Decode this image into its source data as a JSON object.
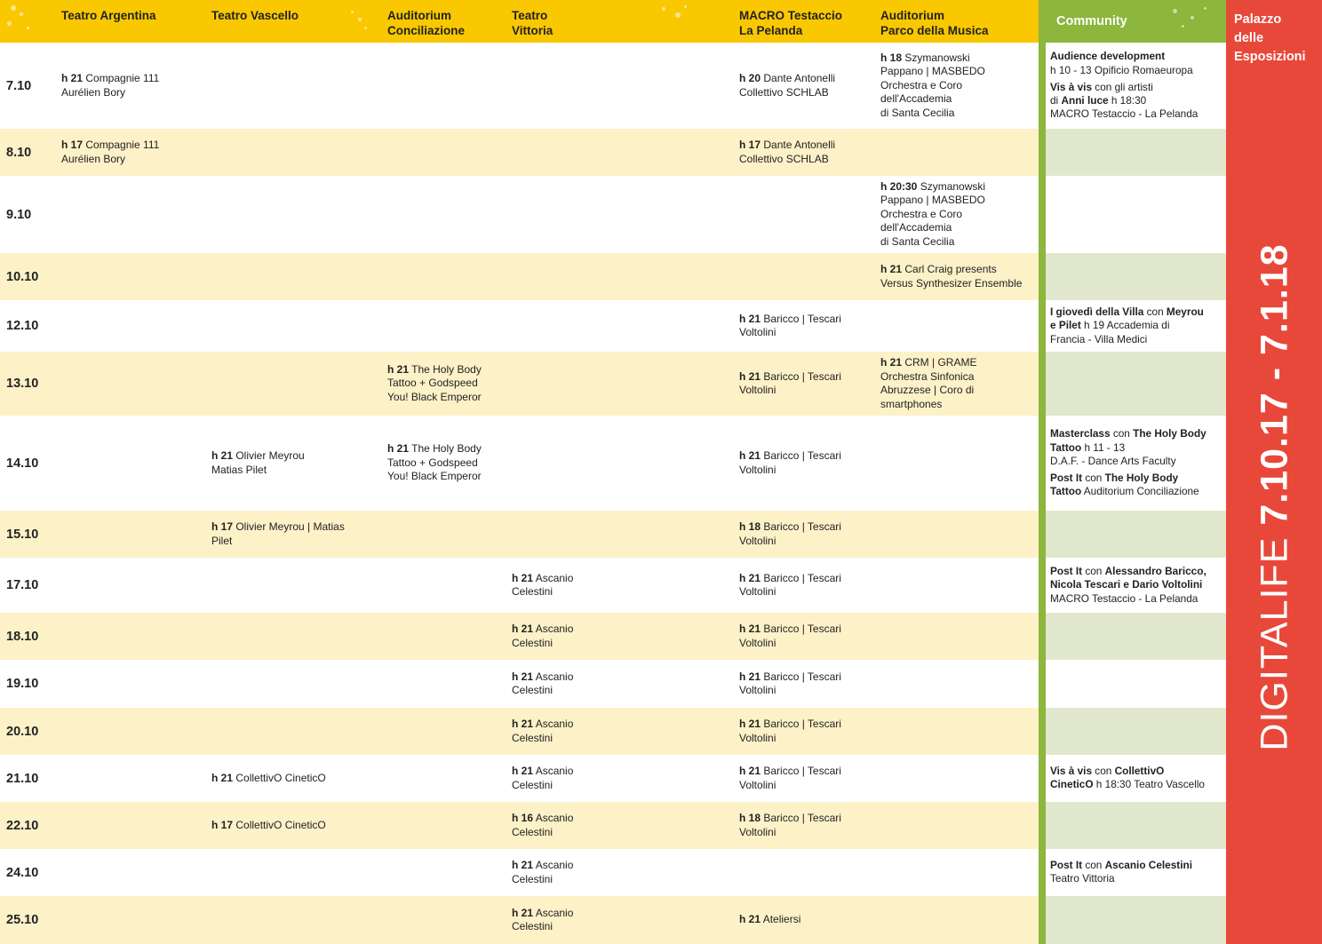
{
  "header": {
    "columns": [
      "Teatro Argentina",
      "Teatro Vascello",
      "Auditorium\nConciliazione",
      "Teatro\nVittoria",
      "MACRO Testaccio\nLa Pelanda",
      "Auditorium\nParco della Musica"
    ],
    "community": "Community"
  },
  "side": {
    "venue": "Palazzo\ndelle\nEsposizioni",
    "name": "DIGITALIFE",
    "dates": "7.10.17 - 7.1.18"
  },
  "colors": {
    "yellow": "#fac800",
    "green": "#8cb63c",
    "red": "#e8483a"
  },
  "rows": [
    {
      "date": "7.10",
      "cells": [
        [
          "h 21",
          "  Compagnie 111\nAurélien Bory"
        ],
        null,
        null,
        null,
        [
          "h 20",
          " Dante Antonelli\nCollettivo SCHLAB"
        ],
        [
          "h 18",
          " Szymanowski\nPappano | MASBEDO\nOrchestra e Coro\ndell'Accademia\ndi Santa Cecilia"
        ]
      ],
      "community": [
        [
          [
            "b",
            "Audience development"
          ],
          [
            "t",
            "\nh 10 - 13  Opificio Romaeuropa"
          ]
        ],
        [
          [
            "b",
            "Vis à vis"
          ],
          [
            "t",
            " con gli artisti\ndi "
          ],
          [
            "b",
            "Anni luce"
          ],
          [
            "t",
            " h 18:30\nMACRO Testaccio - La Pelanda"
          ]
        ]
      ]
    },
    {
      "date": "8.10",
      "cells": [
        [
          "h 17",
          "  Compagnie 111\nAurélien Bory"
        ],
        null,
        null,
        null,
        [
          "h 17",
          "  Dante Antonelli\nCollettivo SCHLAB"
        ],
        null
      ],
      "community": []
    },
    {
      "date": "9.10",
      "cells": [
        null,
        null,
        null,
        null,
        null,
        [
          "h 20:30",
          " Szymanowski\nPappano | MASBEDO\nOrchestra e Coro\ndell'Accademia\ndi Santa Cecilia"
        ]
      ],
      "community": []
    },
    {
      "date": "10.10",
      "cells": [
        null,
        null,
        null,
        null,
        null,
        [
          "h 21",
          " Carl Craig presents\nVersus Synthesizer Ensemble"
        ]
      ],
      "community": []
    },
    {
      "date": "12.10",
      "cells": [
        null,
        null,
        null,
        null,
        [
          "h 21",
          "  Baricco | Tescari\nVoltolini"
        ],
        null
      ],
      "community": [
        [
          [
            "b",
            "I giovedì della Villa"
          ],
          [
            "t",
            " con "
          ],
          [
            "b",
            "Meyrou\ne Pilet"
          ],
          [
            "t",
            " h 19 Accademia di\nFrancia - Villa Medici"
          ]
        ]
      ]
    },
    {
      "date": "13.10",
      "cells": [
        null,
        null,
        [
          "h 21",
          " The Holy Body\nTattoo + Godspeed\nYou! Black Emperor"
        ],
        null,
        [
          "h 21",
          " Baricco | Tescari\nVoltolini"
        ],
        [
          "h 21",
          " CRM | GRAME\nOrchestra Sinfonica\nAbruzzese | Coro di\nsmartphones"
        ]
      ],
      "community": []
    },
    {
      "date": "14.10",
      "cells": [
        null,
        [
          "h 21",
          " Olivier Meyrou\nMatias Pilet"
        ],
        [
          "h 21",
          " The Holy Body\nTattoo + Godspeed\nYou! Black Emperor"
        ],
        null,
        [
          "h 21",
          " Baricco | Tescari\nVoltolini"
        ],
        null
      ],
      "community": [
        [
          [
            "b",
            "Masterclass"
          ],
          [
            "t",
            " con "
          ],
          [
            "b",
            "The Holy Body\nTattoo"
          ],
          [
            "t",
            " h 11 - 13\nD.A.F. - Dance Arts Faculty"
          ]
        ],
        [
          [
            "b",
            "Post It"
          ],
          [
            "t",
            " con "
          ],
          [
            "b",
            "The Holy Body\nTattoo"
          ],
          [
            "t",
            " Auditorium Conciliazione"
          ]
        ]
      ]
    },
    {
      "date": "15.10",
      "cells": [
        null,
        [
          "h 17",
          " Olivier Meyrou | Matias\nPilet"
        ],
        null,
        null,
        [
          "h 18",
          "  Baricco | Tescari\nVoltolini"
        ],
        null
      ],
      "community": []
    },
    {
      "date": "17.10",
      "cells": [
        null,
        null,
        null,
        [
          "h 21",
          " Ascanio\nCelestini"
        ],
        [
          "h 21",
          "  Baricco | Tescari\nVoltolini"
        ],
        null
      ],
      "community": [
        [
          [
            "b",
            "Post It"
          ],
          [
            "t",
            " con "
          ],
          [
            "b",
            "Alessandro Baricco,\nNicola Tescari e Dario Voltolini"
          ],
          [
            "t",
            "\nMACRO Testaccio - La Pelanda"
          ]
        ]
      ]
    },
    {
      "date": "18.10",
      "cells": [
        null,
        null,
        null,
        [
          "h 21",
          " Ascanio\nCelestini"
        ],
        [
          "h 21",
          "  Baricco | Tescari\nVoltolini"
        ],
        null
      ],
      "community": []
    },
    {
      "date": "19.10",
      "cells": [
        null,
        null,
        null,
        [
          "h 21",
          " Ascanio\nCelestini"
        ],
        [
          "h 21",
          "  Baricco | Tescari\nVoltolini"
        ],
        null
      ],
      "community": []
    },
    {
      "date": "20.10",
      "cells": [
        null,
        null,
        null,
        [
          "h 21",
          " Ascanio\nCelestini"
        ],
        [
          "h 21",
          "  Baricco | Tescari\nVoltolini"
        ],
        null
      ],
      "community": []
    },
    {
      "date": "21.10",
      "cells": [
        null,
        [
          "h 21",
          " CollettivO CineticO"
        ],
        null,
        [
          "h 21",
          " Ascanio\nCelestini"
        ],
        [
          "h 21",
          "  Baricco | Tescari\nVoltolini"
        ],
        null
      ],
      "community": [
        [
          [
            "b",
            "Vis à vis"
          ],
          [
            "t",
            " con "
          ],
          [
            "b",
            "CollettivO\nCineticO"
          ],
          [
            "t",
            " h 18:30 Teatro Vascello"
          ]
        ]
      ]
    },
    {
      "date": "22.10",
      "cells": [
        null,
        [
          "h 17",
          " CollettivO CineticO"
        ],
        null,
        [
          "h 16",
          "  Ascanio\nCelestini"
        ],
        [
          "h 18",
          "  Baricco | Tescari\nVoltolini"
        ],
        null
      ],
      "community": []
    },
    {
      "date": "24.10",
      "cells": [
        null,
        null,
        null,
        [
          "h 21",
          " Ascanio\nCelestini"
        ],
        null,
        null
      ],
      "community": [
        [
          [
            "b",
            "Post It"
          ],
          [
            "t",
            " con "
          ],
          [
            "b",
            "Ascanio Celestini"
          ],
          [
            "t",
            "\nTeatro Vittoria"
          ]
        ]
      ]
    },
    {
      "date": "25.10",
      "cells": [
        null,
        null,
        null,
        [
          "h 21",
          " Ascanio\nCelestini"
        ],
        [
          "h 21",
          "  Ateliersi"
        ],
        null
      ],
      "community": []
    }
  ]
}
